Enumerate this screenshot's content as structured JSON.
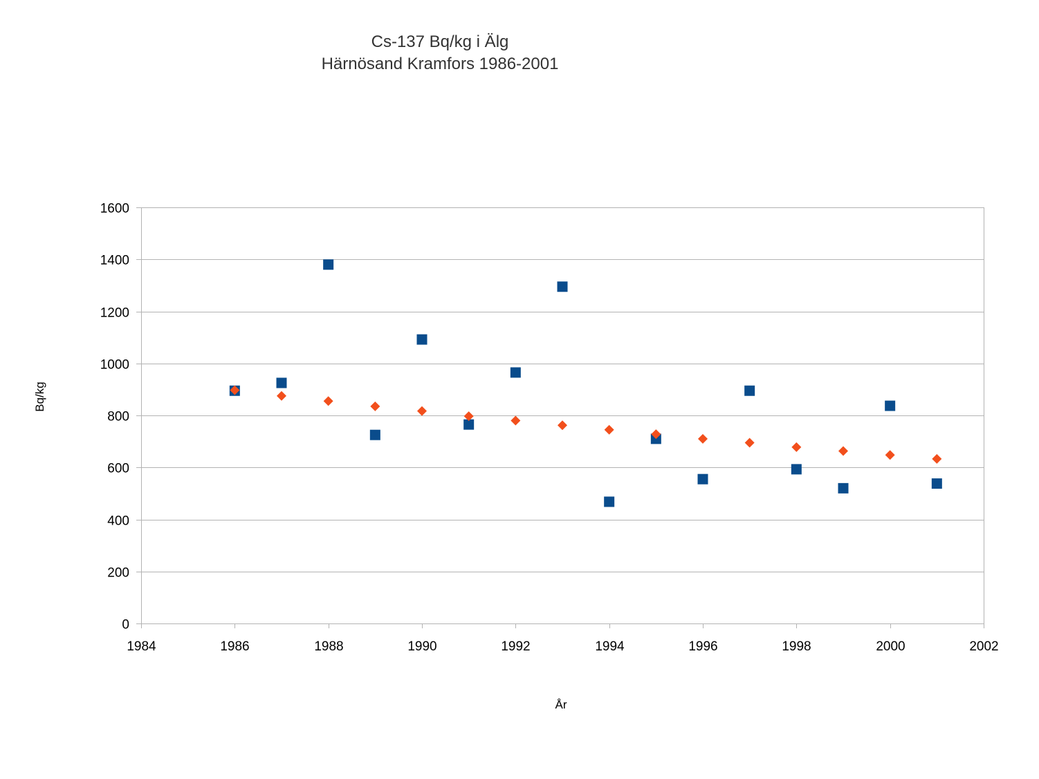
{
  "chart_data": {
    "type": "scatter",
    "title": "Cs-137 Bq/kg i Älg",
    "subtitle": "Härnösand Kramfors 1986-2001",
    "xlabel": "År",
    "ylabel": "Bq/kg",
    "xlim": [
      1984,
      2002
    ],
    "ylim": [
      0,
      1600
    ],
    "x_ticks": [
      1984,
      1986,
      1988,
      1990,
      1992,
      1994,
      1996,
      1998,
      2000,
      2002
    ],
    "y_ticks": [
      0,
      200,
      400,
      600,
      800,
      1000,
      1200,
      1400,
      1600
    ],
    "grid": "horizontal",
    "legend": "none",
    "series": [
      {
        "marker": "square",
        "color": "#0a4c8c",
        "points": [
          {
            "x": 1986,
            "y": 895
          },
          {
            "x": 1987,
            "y": 925
          },
          {
            "x": 1988,
            "y": 1380
          },
          {
            "x": 1989,
            "y": 725
          },
          {
            "x": 1990,
            "y": 1092
          },
          {
            "x": 1991,
            "y": 765
          },
          {
            "x": 1992,
            "y": 965
          },
          {
            "x": 1993,
            "y": 1295
          },
          {
            "x": 1994,
            "y": 468
          },
          {
            "x": 1995,
            "y": 710
          },
          {
            "x": 1996,
            "y": 555
          },
          {
            "x": 1997,
            "y": 895
          },
          {
            "x": 1998,
            "y": 593
          },
          {
            "x": 1999,
            "y": 520
          },
          {
            "x": 2000,
            "y": 837
          },
          {
            "x": 2001,
            "y": 538
          }
        ]
      },
      {
        "marker": "diamond",
        "color": "#f24f1c",
        "points": [
          {
            "x": 1986,
            "y": 897
          },
          {
            "x": 1987,
            "y": 875
          },
          {
            "x": 1988,
            "y": 855
          },
          {
            "x": 1989,
            "y": 835
          },
          {
            "x": 1990,
            "y": 817
          },
          {
            "x": 1991,
            "y": 797
          },
          {
            "x": 1992,
            "y": 780
          },
          {
            "x": 1993,
            "y": 762
          },
          {
            "x": 1994,
            "y": 745
          },
          {
            "x": 1995,
            "y": 728
          },
          {
            "x": 1996,
            "y": 710
          },
          {
            "x": 1997,
            "y": 695
          },
          {
            "x": 1998,
            "y": 678
          },
          {
            "x": 1999,
            "y": 663
          },
          {
            "x": 2000,
            "y": 648
          },
          {
            "x": 2001,
            "y": 633
          }
        ]
      }
    ]
  },
  "colors": {
    "gridline": "#b3b3b3",
    "axis": "#b3b3b3",
    "text": "#000000",
    "title": "#333333"
  }
}
